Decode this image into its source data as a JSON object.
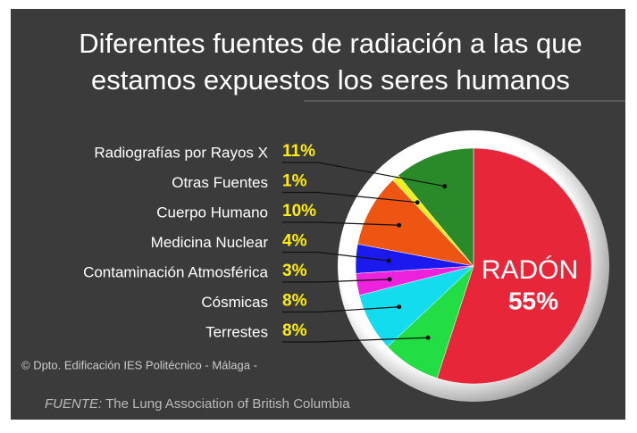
{
  "chart_data": {
    "type": "pie",
    "title": "Diferentes fuentes de radiación a las que estamos expuestos los seres humanos",
    "categories": [
      "RADÓN",
      "Terrestes",
      "Cósmicas",
      "Contaminación Atmosférica",
      "Medicina Nuclear",
      "Cuerpo Humano",
      "Otras Fuentes",
      "Radiografías por Rayos X"
    ],
    "values": [
      55,
      8,
      8,
      3,
      4,
      10,
      1,
      11
    ],
    "value_labels": [
      "55%",
      "8%",
      "8%",
      "3%",
      "4%",
      "10%",
      "1%",
      "11%"
    ],
    "colors": [
      "#e8263a",
      "#22dd44",
      "#12dcee",
      "#ee22dd",
      "#1a1aee",
      "#ee5512",
      "#eeee22",
      "#2a8a2a"
    ],
    "credit": "© Dpto. Edificación IES Politécnico - Málaga -",
    "source": {
      "label": "FUENTE:",
      "text": "The Lung Association of British Columbia"
    }
  }
}
